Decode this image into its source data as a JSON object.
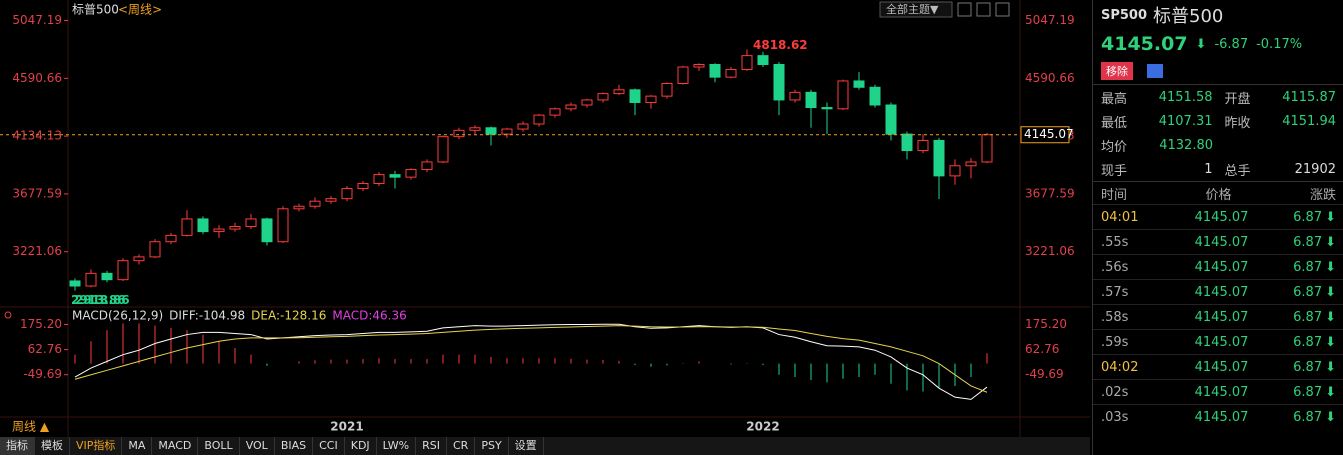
{
  "header": {
    "title": "标普500",
    "period": "<周线>",
    "theme_button": "全部主题▼"
  },
  "chart_data": [
    {
      "type": "candlestick",
      "categories": [
        null,
        null,
        null,
        null,
        null,
        null,
        null,
        null,
        null,
        null,
        null,
        null,
        null,
        null,
        null,
        null,
        null,
        "2021",
        null,
        null,
        null,
        null,
        null,
        null,
        null,
        null,
        null,
        null,
        null,
        null,
        null,
        null,
        null,
        null,
        null,
        null,
        null,
        null,
        null,
        null,
        null,
        null,
        null,
        "2022",
        null,
        null,
        null,
        null,
        null,
        null,
        null,
        null,
        null,
        null,
        null,
        null,
        null,
        null
      ],
      "candles": [
        [
          2990,
          3010,
          2913.86,
          2950
        ],
        [
          2950,
          3080,
          2940,
          3050
        ],
        [
          3050,
          3070,
          2980,
          3000
        ],
        [
          3000,
          3170,
          2990,
          3150
        ],
        [
          3150,
          3200,
          3120,
          3180
        ],
        [
          3180,
          3320,
          3170,
          3300
        ],
        [
          3300,
          3370,
          3280,
          3350
        ],
        [
          3350,
          3550,
          3340,
          3480
        ],
        [
          3480,
          3500,
          3360,
          3380
        ],
        [
          3380,
          3430,
          3330,
          3400
        ],
        [
          3400,
          3450,
          3380,
          3420
        ],
        [
          3420,
          3520,
          3400,
          3480
        ],
        [
          3480,
          3490,
          3270,
          3300
        ],
        [
          3300,
          3580,
          3290,
          3560
        ],
        [
          3560,
          3600,
          3540,
          3580
        ],
        [
          3580,
          3650,
          3560,
          3620
        ],
        [
          3620,
          3660,
          3600,
          3640
        ],
        [
          3640,
          3740,
          3620,
          3720
        ],
        [
          3720,
          3780,
          3700,
          3760
        ],
        [
          3760,
          3850,
          3740,
          3830
        ],
        [
          3830,
          3860,
          3720,
          3810
        ],
        [
          3810,
          3880,
          3790,
          3870
        ],
        [
          3870,
          3950,
          3850,
          3930
        ],
        [
          3930,
          4140,
          3920,
          4130
        ],
        [
          4130,
          4200,
          4110,
          4180
        ],
        [
          4180,
          4220,
          4150,
          4200
        ],
        [
          4200,
          4210,
          4060,
          4150
        ],
        [
          4150,
          4200,
          4120,
          4190
        ],
        [
          4190,
          4250,
          4170,
          4230
        ],
        [
          4230,
          4310,
          4210,
          4300
        ],
        [
          4300,
          4360,
          4280,
          4350
        ],
        [
          4350,
          4400,
          4330,
          4380
        ],
        [
          4380,
          4430,
          4360,
          4420
        ],
        [
          4420,
          4480,
          4400,
          4470
        ],
        [
          4470,
          4540,
          4460,
          4500
        ],
        [
          4500,
          4510,
          4300,
          4400
        ],
        [
          4400,
          4460,
          4350,
          4450
        ],
        [
          4450,
          4560,
          4430,
          4550
        ],
        [
          4550,
          4690,
          4540,
          4680
        ],
        [
          4680,
          4710,
          4650,
          4700
        ],
        [
          4700,
          4710,
          4560,
          4600
        ],
        [
          4600,
          4680,
          4590,
          4660
        ],
        [
          4660,
          4818.62,
          4650,
          4770
        ],
        [
          4770,
          4800,
          4680,
          4700
        ],
        [
          4700,
          4720,
          4300,
          4420
        ],
        [
          4420,
          4500,
          4400,
          4480
        ],
        [
          4480,
          4500,
          4200,
          4360
        ],
        [
          4360,
          4400,
          4150,
          4350
        ],
        [
          4350,
          4580,
          4340,
          4570
        ],
        [
          4570,
          4640,
          4500,
          4520
        ],
        [
          4520,
          4540,
          4360,
          4380
        ],
        [
          4380,
          4400,
          4100,
          4150
        ],
        [
          4150,
          4170,
          3950,
          4020
        ],
        [
          4020,
          4150,
          4000,
          4100
        ],
        [
          4100,
          4120,
          3636.87,
          3820
        ],
        [
          3820,
          3950,
          3750,
          3900
        ],
        [
          3900,
          3960,
          3800,
          3930
        ],
        [
          3930,
          4160,
          3920,
          4145.07
        ]
      ],
      "ylim": [
        2800,
        5170
      ],
      "yticks": [
        5047.19,
        4590.66,
        4134.13,
        3677.59,
        3221.06
      ],
      "colors": {
        "up": "#ff3b3b",
        "down": "#1fd38a",
        "axis": "#e0404a",
        "last": "#f0a020"
      }
    },
    {
      "type": "macd",
      "labels": [
        "MACD(26,12,9)",
        "DIFF:-104.98",
        "DEA:-128.16",
        "MACD:46.36"
      ],
      "dif": [
        -60,
        -20,
        10,
        40,
        60,
        90,
        110,
        130,
        140,
        140,
        135,
        130,
        110,
        115,
        120,
        125,
        128,
        130,
        135,
        140,
        140,
        142,
        145,
        160,
        165,
        170,
        168,
        168,
        170,
        172,
        174,
        175,
        175,
        176,
        176,
        165,
        158,
        160,
        165,
        170,
        165,
        162,
        165,
        160,
        130,
        118,
        98,
        80,
        78,
        75,
        60,
        30,
        -20,
        -50,
        -110,
        -150,
        -160,
        -104.98
      ],
      "dea": [
        -70,
        -50,
        -30,
        -10,
        10,
        30,
        50,
        70,
        85,
        100,
        110,
        115,
        115,
        115,
        116,
        118,
        120,
        122,
        125,
        128,
        130,
        132,
        135,
        140,
        145,
        150,
        153,
        156,
        158,
        160,
        162,
        164,
        166,
        168,
        170,
        168,
        165,
        164,
        164,
        165,
        165,
        164,
        164,
        163,
        155,
        148,
        135,
        122,
        112,
        105,
        90,
        75,
        55,
        35,
        0,
        -50,
        -100,
        -128.16
      ],
      "hist": [
        40,
        100,
        150,
        180,
        180,
        170,
        160,
        150,
        130,
        100,
        70,
        40,
        -10,
        0,
        10,
        15,
        18,
        18,
        20,
        24,
        20,
        20,
        20,
        40,
        40,
        40,
        30,
        24,
        24,
        24,
        24,
        22,
        18,
        16,
        12,
        -6,
        -14,
        -8,
        2,
        10,
        0,
        -4,
        2,
        -6,
        -50,
        -60,
        -74,
        -84,
        -68,
        -60,
        -50,
        -90,
        -120,
        -125,
        -110,
        -100,
        -60,
        46.36
      ],
      "ylim": [
        -230,
        231
      ],
      "yticks": [
        {
          "value": 175.2,
          "label": "175.20"
        },
        {
          "value": 62.76,
          "label": "62.76"
        },
        {
          "value": -49.69,
          "label": "-49.69"
        }
      ],
      "colors": {
        "dif": "#ffffff",
        "dea": "#e8d44a",
        "up": "#ff3b3b",
        "down": "#1fd38a"
      }
    }
  ],
  "period_button": "周线 ▲",
  "toolbar": [
    "指标",
    "模板",
    "VIP指标",
    "MA",
    "MACD",
    "BOLL",
    "VOL",
    "BIAS",
    "CCI",
    "KDJ",
    "LW%",
    "RSI",
    "CR",
    "PSY",
    "设置"
  ],
  "quote": {
    "code": "SP500",
    "name": "标普500",
    "price": "4145.07",
    "change": "-6.87",
    "pct": "-0.17%",
    "remove": "移除",
    "stats": [
      [
        "最高",
        "4151.58",
        "开盘",
        "4115.87"
      ],
      [
        "最低",
        "4107.31",
        "昨收",
        "4151.94"
      ],
      [
        "均价",
        "4132.80"
      ],
      [
        "现手",
        "1",
        "总手",
        "21902"
      ]
    ]
  },
  "ticks_table": {
    "headers": [
      "时间",
      "价格",
      "涨跌"
    ],
    "rows": [
      [
        "04:01",
        "4145.07",
        "6.87"
      ],
      [
        ".55s",
        "4145.07",
        "6.87"
      ],
      [
        ".56s",
        "4145.07",
        "6.87"
      ],
      [
        ".57s",
        "4145.07",
        "6.87"
      ],
      [
        ".58s",
        "4145.07",
        "6.87"
      ],
      [
        ".59s",
        "4145.07",
        "6.87"
      ],
      [
        "04:02",
        "4145.07",
        "6.87"
      ],
      [
        ".02s",
        "4145.07",
        "6.87"
      ],
      [
        ".03s",
        "4145.07",
        "6.87"
      ]
    ]
  }
}
